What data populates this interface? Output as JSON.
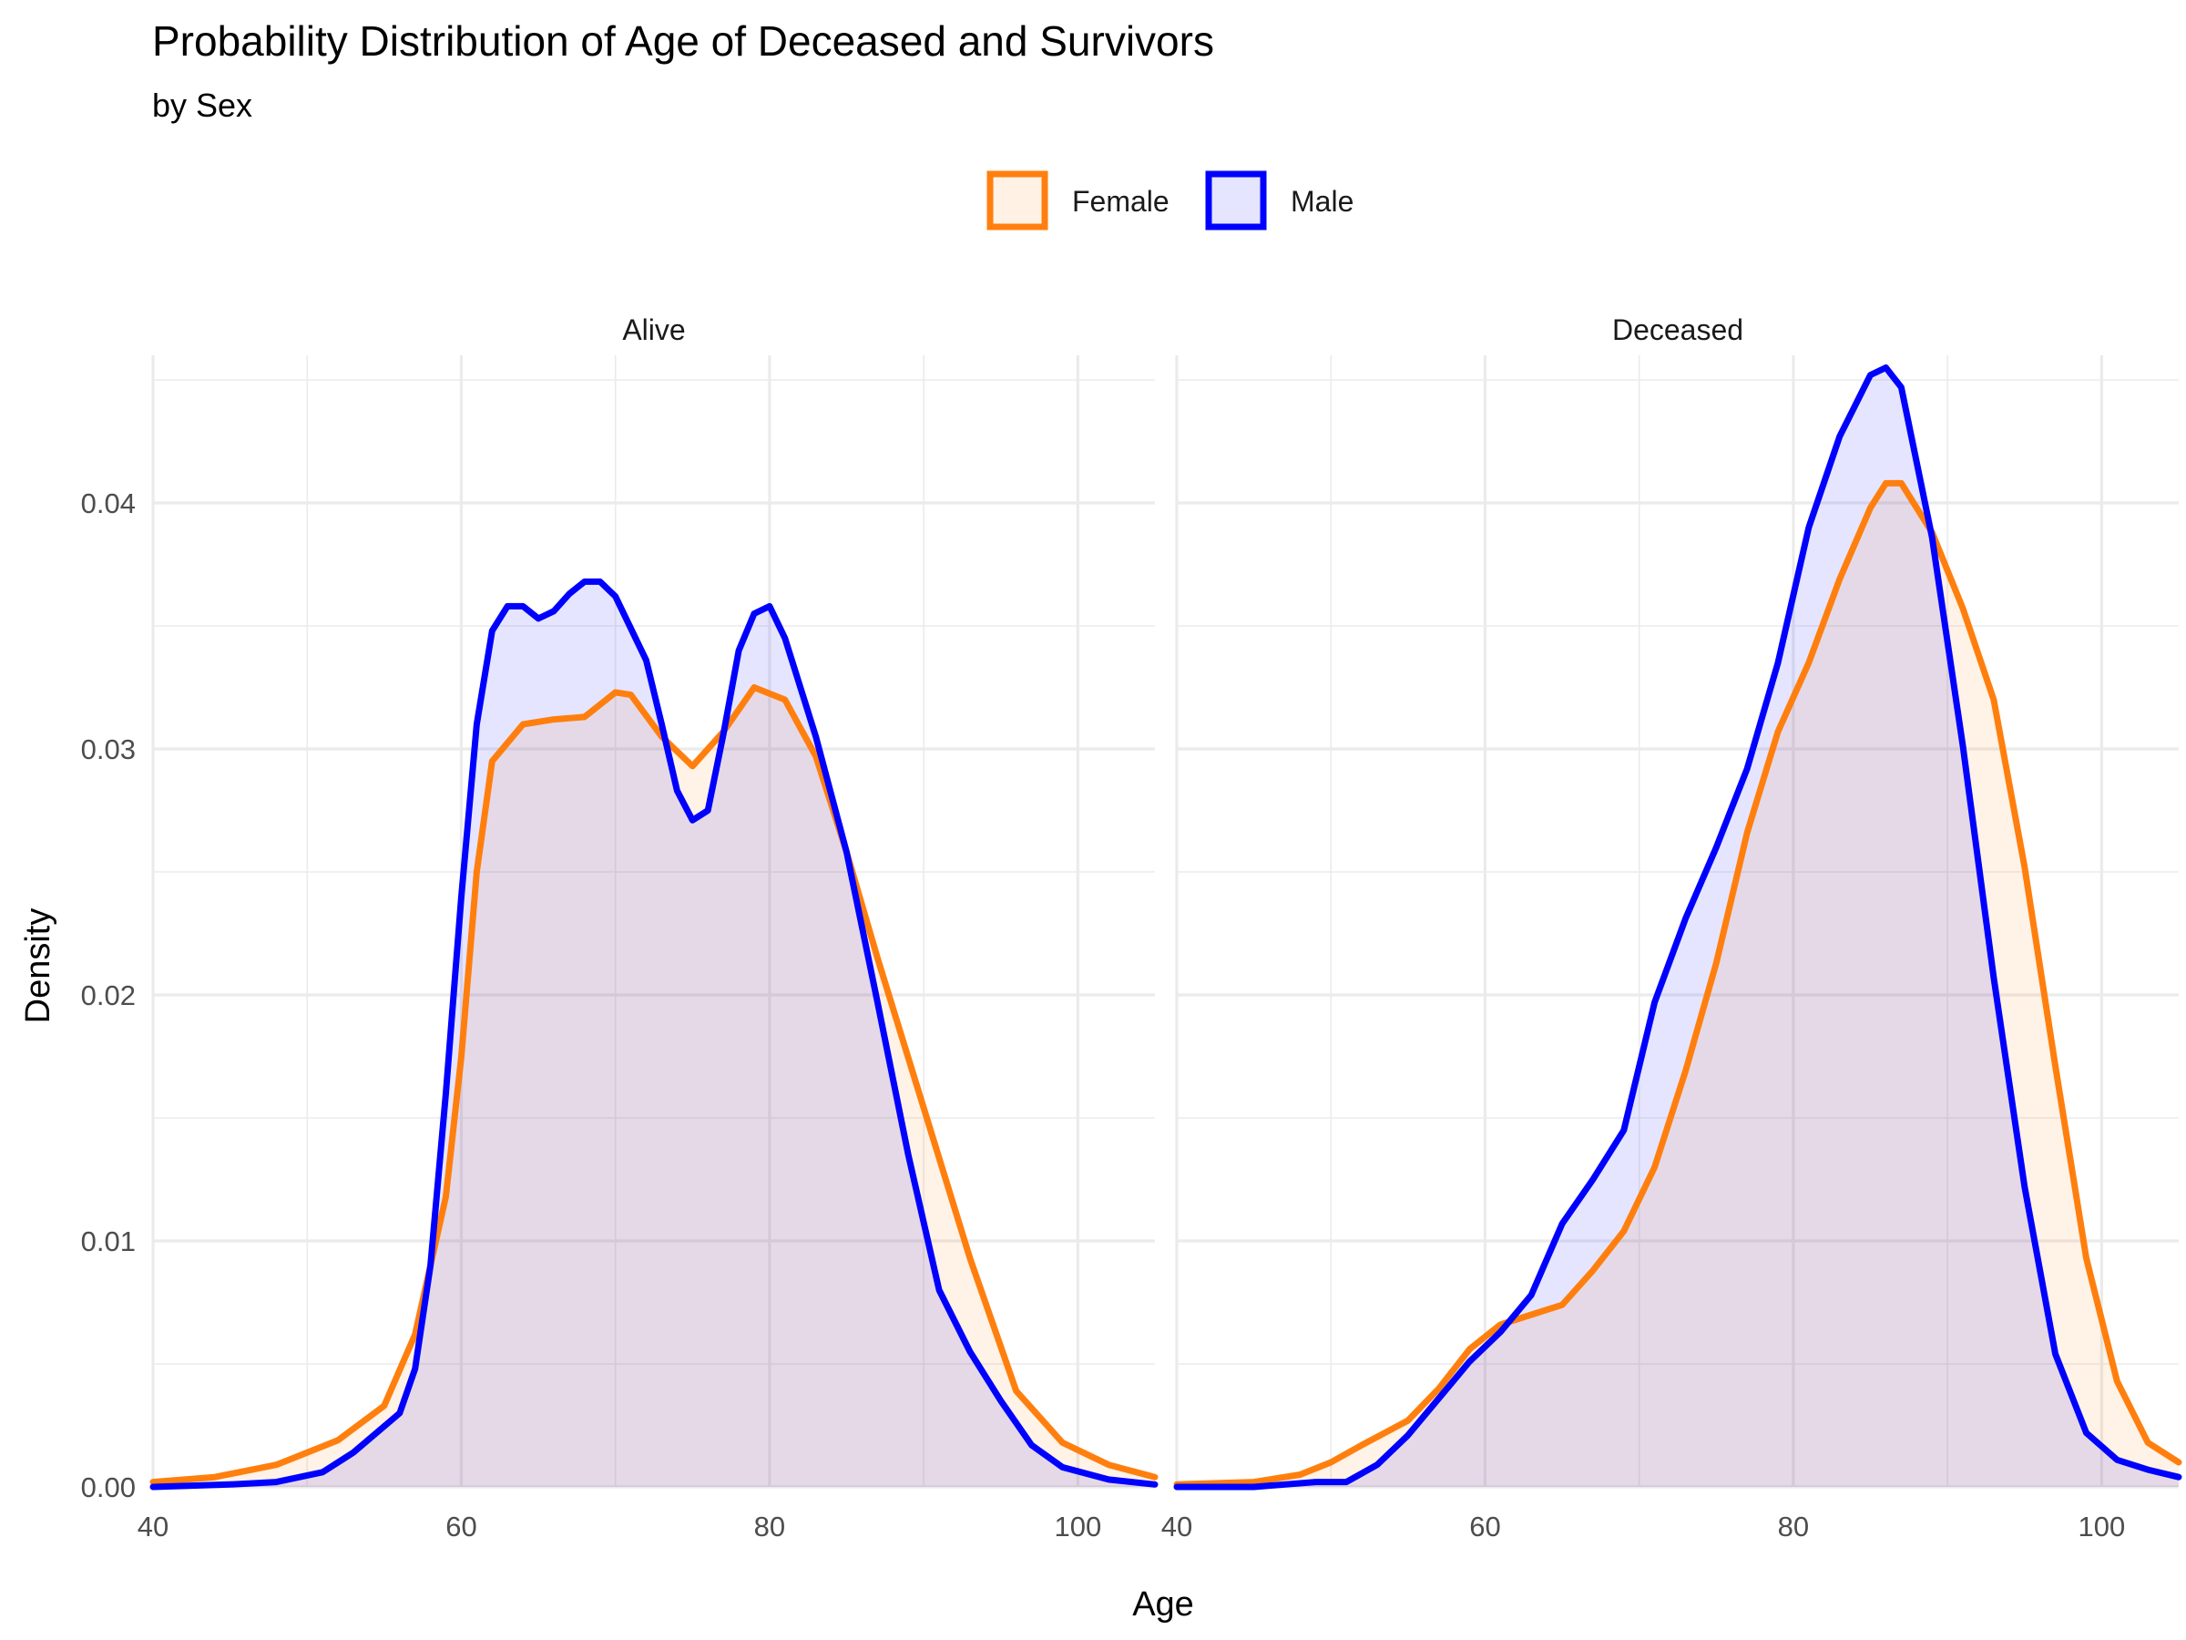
{
  "chart_data": {
    "type": "area",
    "title": "Probability Distribution of Age of Deceased and Survivors",
    "subtitle": "by Sex",
    "xlabel": "Age",
    "ylabel": "Density",
    "xlim": [
      40,
      105
    ],
    "ylim": [
      0,
      0.046
    ],
    "x_ticks": [
      "40",
      "60",
      "80",
      "100"
    ],
    "y_ticks": [
      "0.00",
      "0.01",
      "0.02",
      "0.03",
      "0.04"
    ],
    "grid": true,
    "legend": {
      "position": "top",
      "entries": [
        {
          "name": "Female",
          "stroke": "#ff7f0e",
          "fill": "#fff1e4"
        },
        {
          "name": "Male",
          "stroke": "#0000ff",
          "fill": "#e5e5ff"
        }
      ]
    },
    "facets": [
      {
        "name": "Alive",
        "series": [
          {
            "name": "Female",
            "color": "#ff7f0e",
            "points": [
              [
                40,
                0.0002
              ],
              [
                44,
                0.0004
              ],
              [
                48,
                0.0009
              ],
              [
                52,
                0.0019
              ],
              [
                55,
                0.0033
              ],
              [
                57,
                0.0062
              ],
              [
                59,
                0.0118
              ],
              [
                60,
                0.0175
              ],
              [
                61,
                0.025
              ],
              [
                62,
                0.0295
              ],
              [
                64,
                0.031
              ],
              [
                66,
                0.0312
              ],
              [
                68,
                0.0313
              ],
              [
                70,
                0.0323
              ],
              [
                71,
                0.0322
              ],
              [
                73,
                0.0305
              ],
              [
                75,
                0.0293
              ],
              [
                77,
                0.0307
              ],
              [
                79,
                0.0325
              ],
              [
                81,
                0.032
              ],
              [
                83,
                0.0297
              ],
              [
                85,
                0.0258
              ],
              [
                87,
                0.0215
              ],
              [
                90,
                0.0154
              ],
              [
                93,
                0.0093
              ],
              [
                96,
                0.0039
              ],
              [
                99,
                0.0018
              ],
              [
                102,
                0.0009
              ],
              [
                105,
                0.0004
              ]
            ]
          },
          {
            "name": "Male",
            "color": "#0000ff",
            "points": [
              [
                40,
                0
              ],
              [
                45,
                0.0001
              ],
              [
                48,
                0.0002
              ],
              [
                51,
                0.0006
              ],
              [
                53,
                0.0014
              ],
              [
                56,
                0.003
              ],
              [
                57,
                0.0048
              ],
              [
                58,
                0.009
              ],
              [
                59,
                0.016
              ],
              [
                60,
                0.024
              ],
              [
                61,
                0.031
              ],
              [
                62,
                0.0348
              ],
              [
                63,
                0.0358
              ],
              [
                64,
                0.0358
              ],
              [
                65,
                0.0353
              ],
              [
                66,
                0.0356
              ],
              [
                67,
                0.0363
              ],
              [
                68,
                0.0368
              ],
              [
                69,
                0.0368
              ],
              [
                70,
                0.0362
              ],
              [
                72,
                0.0336
              ],
              [
                73,
                0.031
              ],
              [
                74,
                0.0283
              ],
              [
                75,
                0.0271
              ],
              [
                76,
                0.0275
              ],
              [
                77,
                0.0306
              ],
              [
                78,
                0.034
              ],
              [
                79,
                0.0355
              ],
              [
                80,
                0.0358
              ],
              [
                81,
                0.0345
              ],
              [
                83,
                0.0305
              ],
              [
                85,
                0.0258
              ],
              [
                87,
                0.0197
              ],
              [
                89,
                0.0135
              ],
              [
                91,
                0.008
              ],
              [
                93,
                0.0055
              ],
              [
                95,
                0.0035
              ],
              [
                97,
                0.0017
              ],
              [
                99,
                0.0008
              ],
              [
                102,
                0.0003
              ],
              [
                105,
                0.0001
              ]
            ]
          }
        ]
      },
      {
        "name": "Deceased",
        "series": [
          {
            "name": "Female",
            "color": "#ff7f0e",
            "points": [
              [
                40,
                0.0001
              ],
              [
                45,
                0.0002
              ],
              [
                48,
                0.0005
              ],
              [
                50,
                0.001
              ],
              [
                52,
                0.0017
              ],
              [
                55,
                0.0027
              ],
              [
                57,
                0.004
              ],
              [
                59,
                0.0056
              ],
              [
                61,
                0.0066
              ],
              [
                63,
                0.007
              ],
              [
                65,
                0.0074
              ],
              [
                67,
                0.0088
              ],
              [
                69,
                0.0104
              ],
              [
                71,
                0.013
              ],
              [
                73,
                0.0169
              ],
              [
                75,
                0.0213
              ],
              [
                77,
                0.0266
              ],
              [
                79,
                0.0307
              ],
              [
                81,
                0.0335
              ],
              [
                83,
                0.0369
              ],
              [
                85,
                0.0398
              ],
              [
                86,
                0.0408
              ],
              [
                87,
                0.0408
              ],
              [
                89,
                0.0388
              ],
              [
                91,
                0.0357
              ],
              [
                93,
                0.032
              ],
              [
                95,
                0.0252
              ],
              [
                97,
                0.0171
              ],
              [
                99,
                0.0093
              ],
              [
                101,
                0.0043
              ],
              [
                103,
                0.0018
              ],
              [
                105,
                0.001
              ]
            ]
          },
          {
            "name": "Male",
            "color": "#0000ff",
            "points": [
              [
                40,
                0
              ],
              [
                45,
                0
              ],
              [
                49,
                0.0002
              ],
              [
                51,
                0.0002
              ],
              [
                53,
                0.0009
              ],
              [
                55,
                0.0021
              ],
              [
                57,
                0.0036
              ],
              [
                59,
                0.0051
              ],
              [
                61,
                0.0063
              ],
              [
                63,
                0.0078
              ],
              [
                65,
                0.0107
              ],
              [
                67,
                0.0125
              ],
              [
                69,
                0.0145
              ],
              [
                71,
                0.0197
              ],
              [
                73,
                0.0231
              ],
              [
                75,
                0.026
              ],
              [
                77,
                0.0292
              ],
              [
                79,
                0.0335
              ],
              [
                81,
                0.039
              ],
              [
                83,
                0.0427
              ],
              [
                85,
                0.0452
              ],
              [
                86,
                0.0455
              ],
              [
                87,
                0.0447
              ],
              [
                89,
                0.0386
              ],
              [
                91,
                0.0301
              ],
              [
                93,
                0.0207
              ],
              [
                95,
                0.0122
              ],
              [
                97,
                0.0054
              ],
              [
                99,
                0.0022
              ],
              [
                101,
                0.0011
              ],
              [
                103,
                0.0007
              ],
              [
                105,
                0.0004
              ]
            ]
          }
        ]
      }
    ]
  }
}
